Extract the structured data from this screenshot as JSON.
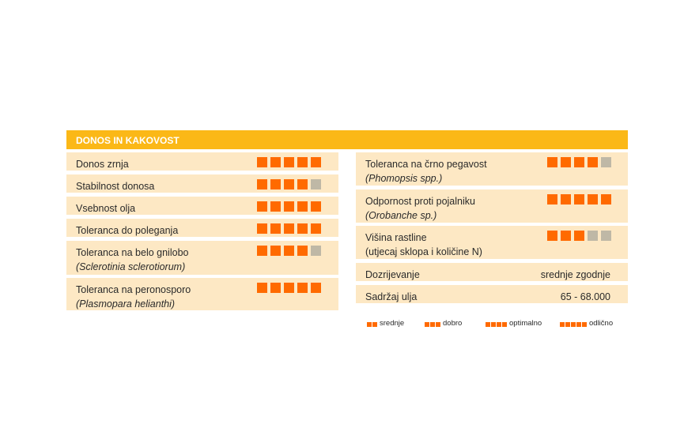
{
  "header": {
    "title": "DONOS IN KAKOVOST"
  },
  "colors": {
    "header": "#fbb817",
    "row_bg": "#fde8c4",
    "filled": "#ff6a00",
    "empty": "#bfb8a6"
  },
  "rating_max": 5,
  "left": [
    {
      "label": "Donos zrnja",
      "rating": 5
    },
    {
      "label": "Stabilnost donosa",
      "rating": 4
    },
    {
      "label": "Vsebnost olja",
      "rating": 5
    },
    {
      "label": "Toleranca do poleganja",
      "rating": 5
    },
    {
      "label": "Toleranca na belo gnilobo",
      "sub": "(Sclerotinia sclerotiorum)",
      "rating": 4
    },
    {
      "label": "Toleranca na peronosporo",
      "sub": "(Plasmopara helianthi)",
      "rating": 5
    }
  ],
  "right": [
    {
      "label": "Toleranca na črno pegavost",
      "sub": "(Phomopsis spp.)",
      "rating": 4
    },
    {
      "label": "Odpornost proti pojalniku",
      "sub": "(Orobanche sp.)",
      "rating": 5
    },
    {
      "label": "Višina rastline",
      "sub2": "(utjecaj sklopa i količine N)",
      "rating": 3
    },
    {
      "label": "Dozrijevanje",
      "value": "srednje zgodnje"
    },
    {
      "label": "Sadržaj ulja",
      "value": "65 - 68.000"
    }
  ],
  "legend": [
    {
      "label": "srednje",
      "squares": 2
    },
    {
      "label": "dobro",
      "squares": 3
    },
    {
      "label": "optimalno",
      "squares": 4
    },
    {
      "label": "odlično",
      "squares": 5
    }
  ]
}
